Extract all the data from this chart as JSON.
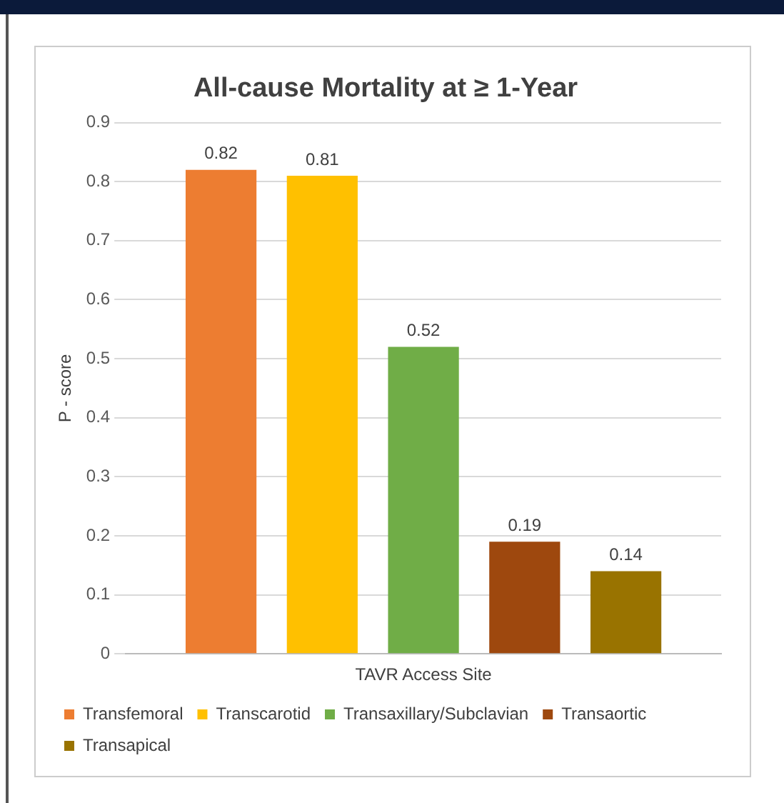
{
  "chart_data": {
    "type": "bar",
    "title": "All-cause Mortality at ≥ 1-Year",
    "xlabel": "TAVR Access Site",
    "ylabel": "P - score",
    "categories": [
      null
    ],
    "series": [
      {
        "name": "Transfemoral",
        "color": "#ed7d31",
        "values": [
          0.82
        ]
      },
      {
        "name": "Transcarotid",
        "color": "#ffc000",
        "values": [
          0.81
        ]
      },
      {
        "name": "Transaxillary/Subclavian",
        "color": "#70ad47",
        "values": [
          0.52
        ]
      },
      {
        "name": "Transaortic",
        "color": "#9e480e",
        "values": [
          0.19
        ]
      },
      {
        "name": "Transapical",
        "color": "#997300",
        "values": [
          0.14
        ]
      }
    ],
    "ylim": [
      0,
      0.9
    ],
    "yticks": [
      0,
      0.1,
      0.2,
      0.3,
      0.4,
      0.5,
      0.6,
      0.7,
      0.8,
      0.9
    ],
    "grid": "y",
    "legend": "bottom",
    "tick_labels": "y",
    "data_labels": true
  }
}
